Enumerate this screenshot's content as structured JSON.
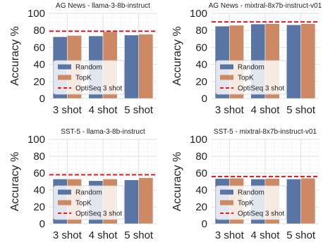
{
  "chart_data": [
    {
      "type": "bar",
      "title": "AG News - llama-3-8b-instruct",
      "ylabel": "Accuracy %",
      "ylim": [
        0,
        100
      ],
      "yticks": [
        0,
        20,
        40,
        60,
        80,
        100
      ],
      "categories": [
        "3 shot",
        "4 shot",
        "5 shot"
      ],
      "series": [
        {
          "name": "Random",
          "values": [
            72.5,
            73.5,
            74.5
          ]
        },
        {
          "name": "TopK",
          "values": [
            74,
            78.5,
            75.5
          ]
        }
      ],
      "reference_line": {
        "name": "OptiSeq 3 shot",
        "value": 79
      },
      "legend": "lower-left",
      "grid": true
    },
    {
      "type": "bar",
      "title": "AG News - mixtral-8x7b-instruct-v01",
      "ylabel": "Accuracy %",
      "ylim": [
        0,
        100
      ],
      "yticks": [
        0,
        20,
        40,
        60,
        80,
        100
      ],
      "categories": [
        "3 shot",
        "4 shot",
        "5 shot"
      ],
      "series": [
        {
          "name": "Random",
          "values": [
            85,
            87.5,
            86.5
          ]
        },
        {
          "name": "TopK",
          "values": [
            86,
            88,
            88
          ]
        }
      ],
      "reference_line": {
        "name": "OptiSeq 3 shot",
        "value": 90
      },
      "legend": "lower-left",
      "grid": true
    },
    {
      "type": "bar",
      "title": "SST-5 - llama-3-8b-instruct",
      "ylabel": "Accuracy %",
      "ylim": [
        0,
        100
      ],
      "yticks": [
        0,
        20,
        40,
        60,
        80,
        100
      ],
      "categories": [
        "3 shot",
        "4 shot",
        "5 shot"
      ],
      "series": [
        {
          "name": "Random",
          "values": [
            53,
            51,
            52
          ]
        },
        {
          "name": "TopK",
          "values": [
            53,
            53,
            54.5
          ]
        }
      ],
      "reference_line": {
        "name": "OptiSeq 3 shot",
        "value": 58
      },
      "legend": "lower-left",
      "grid": true
    },
    {
      "type": "bar",
      "title": "SST-5 - mixtral-8x7b-instruct-v01",
      "ylabel": "Accuracy %",
      "ylim": [
        0,
        100
      ],
      "yticks": [
        0,
        20,
        40,
        60,
        80,
        100
      ],
      "categories": [
        "3 shot",
        "4 shot",
        "5 shot"
      ],
      "series": [
        {
          "name": "Random",
          "values": [
            53.5,
            53,
            53
          ]
        },
        {
          "name": "TopK",
          "values": [
            54,
            53.5,
            54
          ]
        }
      ],
      "reference_line": {
        "name": "OptiSeq 3 shot",
        "value": 56
      },
      "legend": "lower-left",
      "grid": true
    }
  ],
  "colors": {
    "Random": "#5875a4",
    "TopK": "#cc8963",
    "OptiSeq 3 shot": "#e8000b",
    "grid": "#dddddd"
  }
}
